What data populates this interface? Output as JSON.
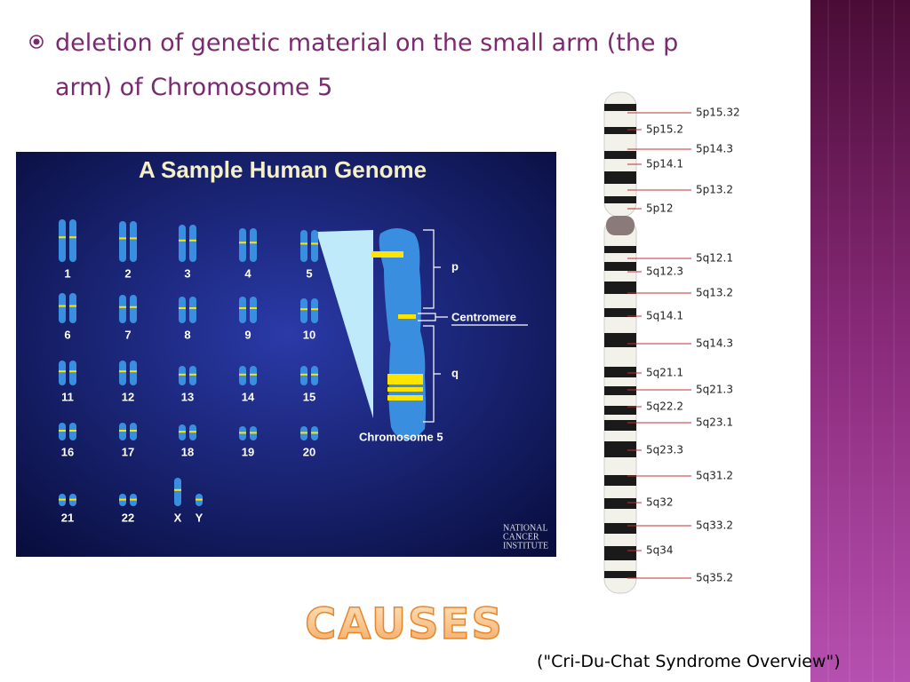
{
  "bullet": "deletion of genetic material on the small arm (the p arm) of Chromosome 5",
  "genome_image": {
    "title": "A Sample Human Genome",
    "chromosome_labels": [
      "1",
      "2",
      "3",
      "4",
      "5",
      "6",
      "7",
      "8",
      "9",
      "10",
      "11",
      "12",
      "13",
      "14",
      "15",
      "16",
      "17",
      "18",
      "19",
      "20",
      "21",
      "22",
      "X",
      "Y"
    ],
    "p_label": "p",
    "centromere_label": "Centromere",
    "q_label": "q",
    "chromosome_caption": "Chromosome 5",
    "logo": [
      "NATIONAL",
      "CANCER",
      "INSTITUTE"
    ]
  },
  "ideogram": {
    "right_labels": [
      "5p15.32",
      "5p14.3",
      "5p13.2",
      "5q12.1",
      "5q13.2",
      "5q14.3",
      "5q21.3",
      "5q23.1",
      "5q31.2",
      "5q33.2",
      "5q35.2"
    ],
    "left_labels": [
      "5p15.2",
      "5p14.1",
      "5p12",
      "5q12.3",
      "5q14.1",
      "5q21.1",
      "5q22.2",
      "5q23.3",
      "5q32",
      "5q34"
    ]
  },
  "heading": "CAUSES",
  "citation": "(\"Cri-Du-Chat Syndrome Overview\")"
}
